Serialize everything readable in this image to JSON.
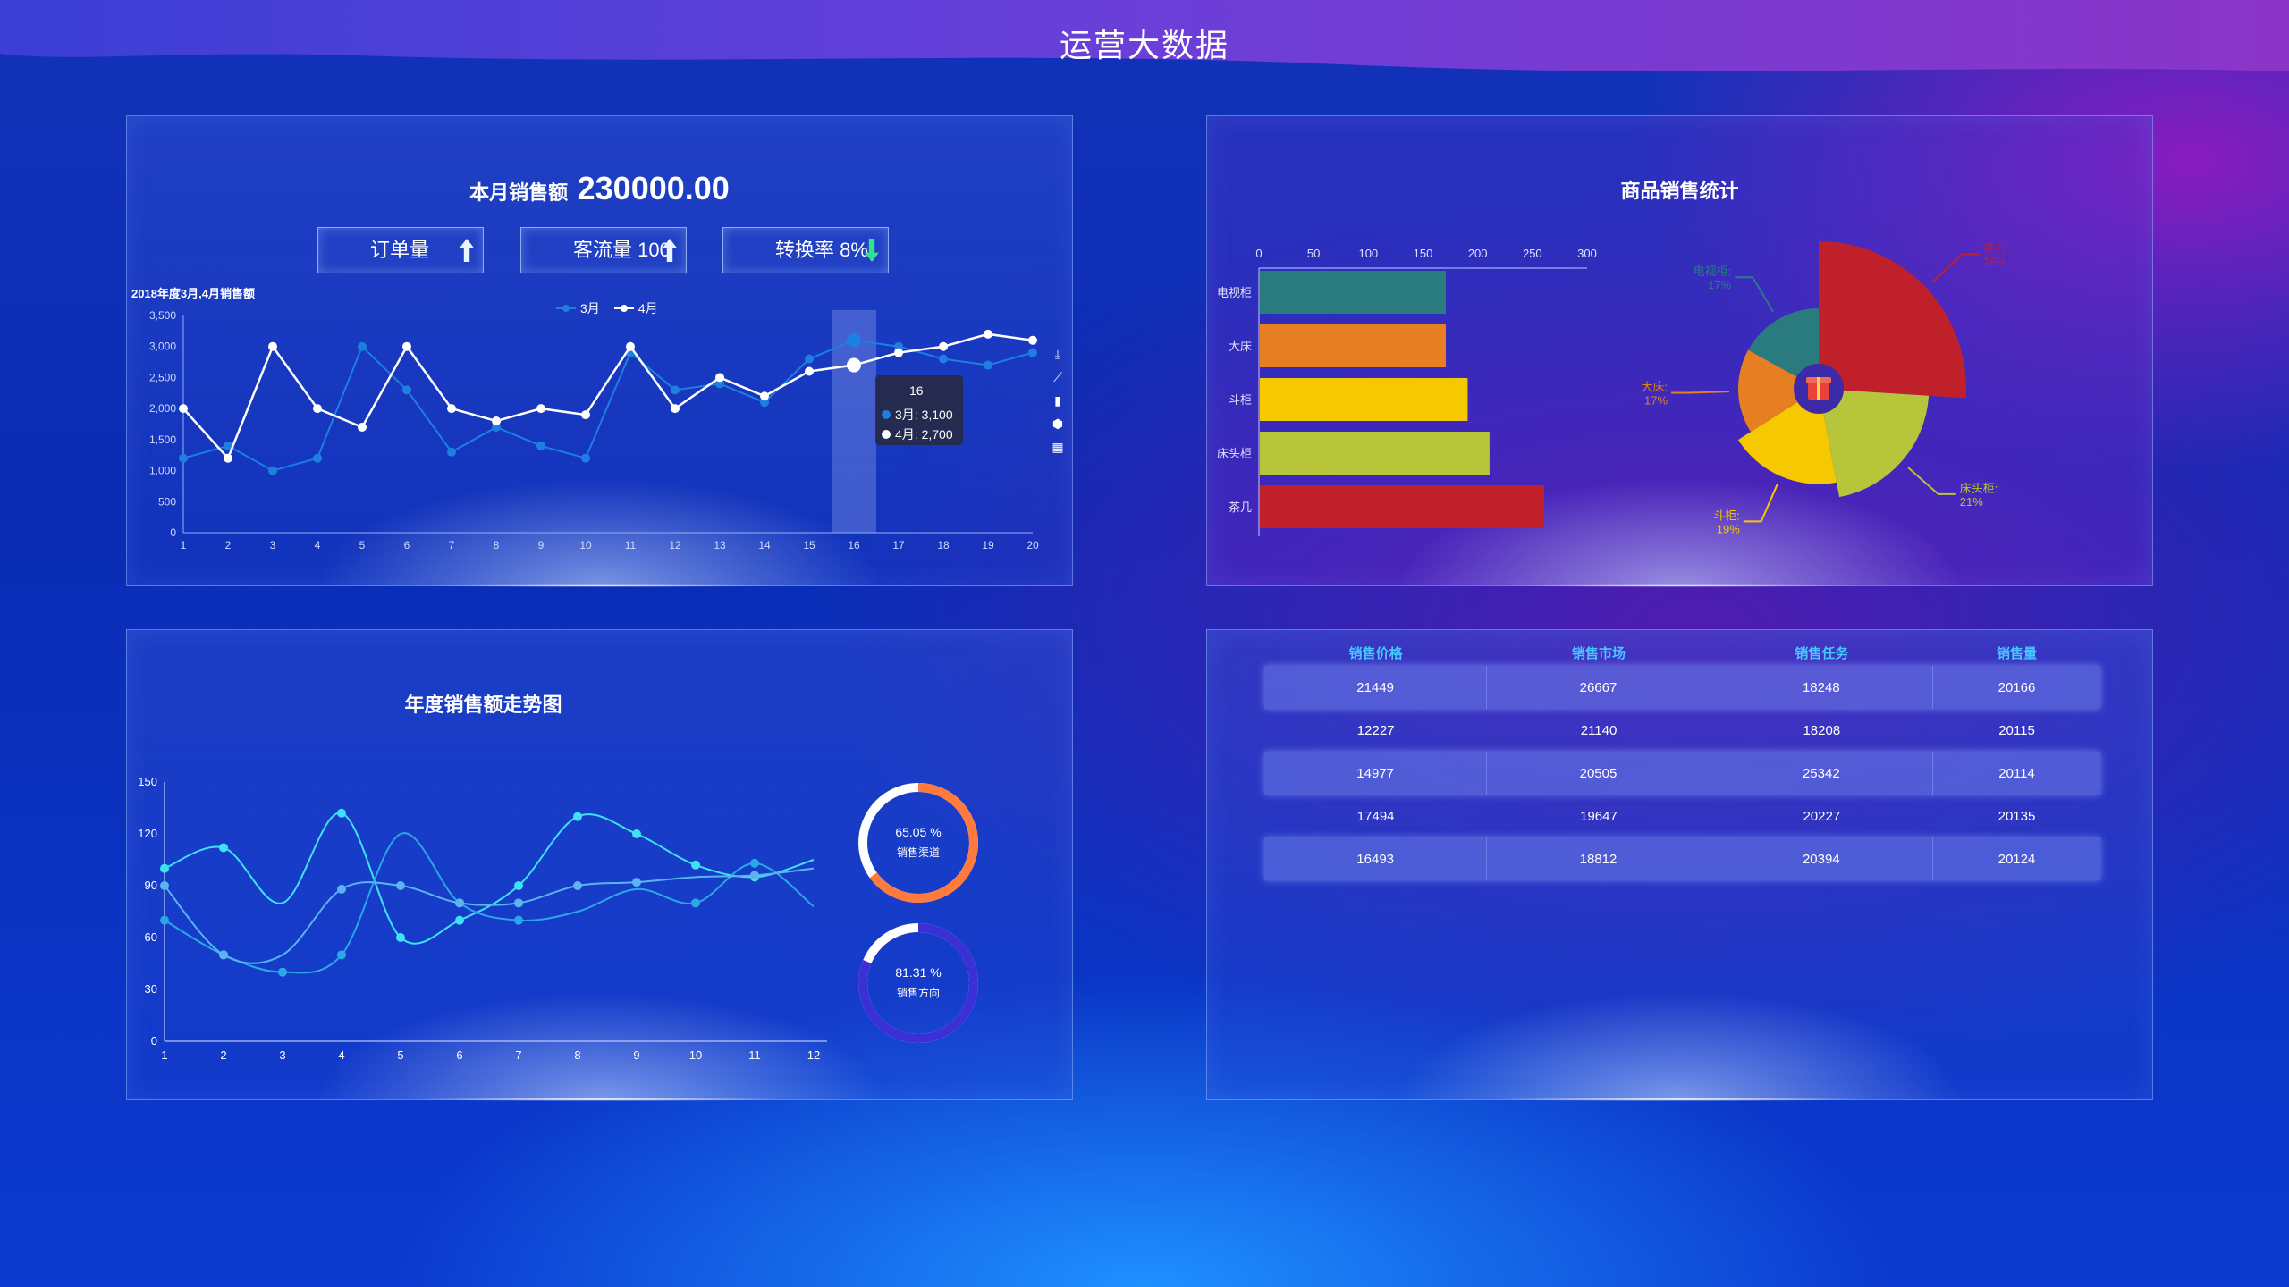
{
  "page": {
    "title": "运营大数据"
  },
  "sales_panel": {
    "month_label": "本月销售额",
    "month_value": "230000.00",
    "kpis": [
      {
        "label": "订单量",
        "trend": "up"
      },
      {
        "label": "客流量 100",
        "trend": "up"
      },
      {
        "label": "转换率 8%",
        "trend": "down"
      }
    ],
    "caption": "2018年度3月,4月销售额",
    "toolbox_icons": [
      "download-icon",
      "line-switch-icon",
      "bar-switch-icon",
      "stack-icon",
      "tiled-icon"
    ],
    "tooltip": {
      "title": "16",
      "lines": [
        "3月: 3,100",
        "4月: 2,700"
      ]
    }
  },
  "product_panel": {
    "title": "商品销售统计"
  },
  "trend_panel": {
    "title": "年度销售额走势图",
    "rings": [
      {
        "pct": "65.05 %",
        "name": "销售渠道",
        "value": 65.05,
        "color": "#ff7a3c",
        "track": "#ffffff"
      },
      {
        "pct": "81.31 %",
        "name": "销售方向",
        "value": 81.31,
        "color": "#3b2fd6",
        "track": "#ffffff"
      }
    ]
  },
  "table_panel": {
    "headers": [
      "销售价格",
      "销售市场",
      "销售任务",
      "销售量"
    ],
    "rows": [
      [
        "21449",
        "26667",
        "18248",
        "20166"
      ],
      [
        "12227",
        "21140",
        "18208",
        "20115"
      ],
      [
        "14977",
        "20505",
        "25342",
        "20114"
      ],
      [
        "17494",
        "19647",
        "20227",
        "20135"
      ],
      [
        "16493",
        "18812",
        "20394",
        "20124"
      ]
    ]
  },
  "chart_data": [
    {
      "type": "line",
      "title": "2018年度3月,4月销售额",
      "x": [
        1,
        2,
        3,
        4,
        5,
        6,
        7,
        8,
        9,
        10,
        11,
        12,
        13,
        14,
        15,
        16,
        17,
        18,
        19,
        20
      ],
      "ylim": [
        0,
        3500
      ],
      "yticks": [
        "0",
        "500",
        "1,000",
        "1,500",
        "2,000",
        "2,500",
        "3,000",
        "3,500"
      ],
      "series": [
        {
          "name": "3月",
          "color": "#1e7fe0",
          "values": [
            1200,
            1400,
            1000,
            1200,
            3000,
            2300,
            1300,
            1700,
            1400,
            1200,
            2900,
            2300,
            2400,
            2100,
            2800,
            3100,
            3000,
            2800,
            2700,
            2900
          ]
        },
        {
          "name": "4月",
          "color": "#ffffff",
          "values": [
            2000,
            1200,
            3000,
            2000,
            1700,
            3000,
            2000,
            1800,
            2000,
            1900,
            3000,
            2000,
            2500,
            2200,
            2600,
            2700,
            2900,
            3000,
            3200,
            3100
          ]
        }
      ],
      "highlight_x": 16,
      "legend": "top-center"
    },
    {
      "type": "bar",
      "categories": [
        "电视柜",
        "大床",
        "斗柜",
        "床头柜",
        "茶几"
      ],
      "values": [
        170,
        170,
        190,
        210,
        260
      ],
      "colors": [
        "#2a7b80",
        "#e67e22",
        "#f5c800",
        "#b7c53a",
        "#c0202a"
      ],
      "xlim": [
        0,
        300
      ],
      "xticks": [
        "0",
        "50",
        "100",
        "150",
        "200",
        "250",
        "300"
      ]
    },
    {
      "type": "pie",
      "slices": [
        {
          "label": "茶几",
          "pct": "26%",
          "value": 26,
          "color": "#c0202a"
        },
        {
          "label": "床头柜",
          "pct": "21%",
          "value": 21,
          "color": "#b7c53a"
        },
        {
          "label": "斗柜",
          "pct": "19%",
          "value": 19,
          "color": "#f5c800"
        },
        {
          "label": "大床",
          "pct": "17%",
          "value": 17,
          "color": "#e67e22"
        },
        {
          "label": "电视柜",
          "pct": "17%",
          "value": 17,
          "color": "#2a7b80"
        }
      ]
    },
    {
      "type": "line",
      "x": [
        1,
        2,
        3,
        4,
        5,
        6,
        7,
        8,
        9,
        10,
        11,
        12
      ],
      "ylim": [
        0,
        150
      ],
      "yticks": [
        "0",
        "30",
        "60",
        "90",
        "120",
        "150"
      ],
      "series": [
        {
          "color": "#3de3f0",
          "values": [
            100,
            112,
            80,
            132,
            60,
            70,
            90,
            130,
            120,
            102,
            95,
            105
          ]
        },
        {
          "color": "#2aa8e6",
          "values": [
            70,
            50,
            40,
            50,
            120,
            80,
            70,
            75,
            88,
            80,
            103,
            78
          ]
        },
        {
          "color": "#5ab4f0",
          "values": [
            90,
            50,
            50,
            88,
            90,
            80,
            80,
            90,
            92,
            95,
            96,
            100
          ]
        }
      ]
    }
  ]
}
